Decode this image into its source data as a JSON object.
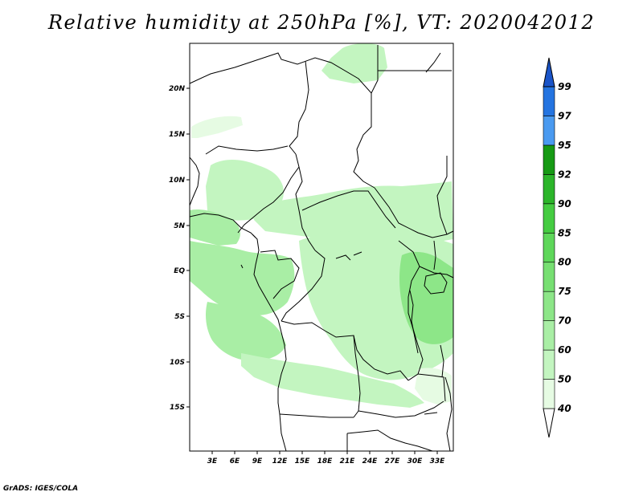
{
  "title": "Relative humidity at 250hPa [%], VT: 2020042012",
  "credit": "GrADS: IGES/COLA",
  "colors": {
    "land_fill": "#ffffff",
    "border": "#000000",
    "rh_40": "#e6fbe3",
    "rh_50": "#c3f5c0",
    "rh_60": "#a9eea5",
    "rh_70": "#8de688"
  },
  "map": {
    "lat_ticks": [
      "20N",
      "15N",
      "10N",
      "5N",
      "EQ",
      "5S",
      "10S",
      "15S"
    ],
    "lon_ticks": [
      "3E",
      "6E",
      "9E",
      "12E",
      "15E",
      "18E",
      "21E",
      "24E",
      "27E",
      "30E",
      "33E"
    ]
  },
  "colorbar": {
    "levels": [
      "40",
      "50",
      "60",
      "70",
      "75",
      "80",
      "85",
      "90",
      "92",
      "95",
      "97",
      "99"
    ],
    "colors": [
      "#ffffff",
      "#e6fbe3",
      "#c3f5c0",
      "#a9eea5",
      "#8de688",
      "#77df72",
      "#5ed75a",
      "#45cc41",
      "#2cb52a",
      "#169a14",
      "#4a9af0",
      "#2474e0",
      "#1a54c8"
    ]
  }
}
